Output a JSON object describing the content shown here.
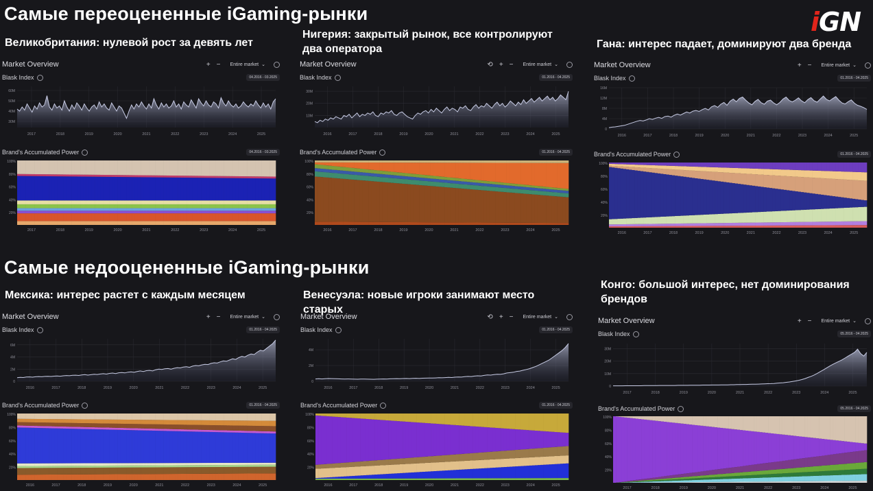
{
  "heading_overrated": "Самые переоцененные iGaming-рынки",
  "heading_underrated": "Самые недооцененные iGaming-рынки",
  "logo": {
    "prefix": "i",
    "main": "GN"
  },
  "ui": {
    "market_overview": "Market Overview",
    "blask_index": "Blask Index",
    "brands_power": "Brand's Accumulated Power",
    "entire_market": "Entire market",
    "zoom_in": "+",
    "zoom_out": "−",
    "chevron": "⌄"
  },
  "colors": {
    "area_top": "#b7bcd6",
    "area_bottom": "#2a2d42",
    "grid": "#2c2c33"
  },
  "chart_data": [
    {
      "id": "uk",
      "caption": "Великобритания: нулевой рост за девять лет",
      "date_range": "04.2016 - 03.2025",
      "reset_icon": false,
      "blask_index": {
        "type": "area",
        "x_ticks": [
          "2017",
          "2018",
          "2019",
          "2020",
          "2021",
          "2022",
          "2023",
          "2024",
          "2025"
        ],
        "y_ticks": [
          "30M",
          "40M",
          "50M",
          "60M"
        ],
        "ylim": [
          24,
          64
        ],
        "values": [
          42,
          40,
          44,
          41,
          47,
          43,
          39,
          45,
          42,
          48,
          44,
          46,
          55,
          44,
          41,
          47,
          43,
          45,
          41,
          50,
          44,
          40,
          46,
          42,
          48,
          45,
          41,
          47,
          43,
          40,
          44,
          46,
          42,
          49,
          44,
          47,
          43,
          41,
          48,
          44,
          40,
          45,
          43,
          38,
          33,
          40,
          46,
          42,
          47,
          44,
          49,
          45,
          42,
          47,
          43,
          52,
          46,
          42,
          48,
          44,
          47,
          43,
          45,
          50,
          44,
          47,
          42,
          49,
          46,
          44,
          51,
          47,
          43,
          52,
          48,
          45,
          50,
          46,
          44,
          49,
          47,
          43,
          53,
          48,
          45,
          50,
          46,
          44,
          47,
          43,
          45,
          49,
          46,
          44,
          47,
          45,
          50,
          46,
          43,
          48,
          44,
          47,
          42,
          49,
          52
        ]
      },
      "brand_power": {
        "type": "area",
        "x_ticks": [
          "2017",
          "2018",
          "2019",
          "2020",
          "2021",
          "2022",
          "2023",
          "2024",
          "2025"
        ],
        "y_ticks": [
          "20%",
          "40%",
          "60%",
          "80%",
          "100%"
        ],
        "stack_colors": [
          "#e6a86b",
          "#d8552b",
          "#8a4fd1",
          "#6aa3e0",
          "#8bc34a",
          "#e7dfa4",
          "#1b22b4",
          "#c23b6b",
          "#d4c3b0"
        ],
        "segments": [
          [
            6,
            6
          ],
          [
            12,
            12
          ],
          [
            4,
            4
          ],
          [
            4,
            4
          ],
          [
            6,
            6
          ],
          [
            6,
            6
          ],
          [
            38,
            34
          ],
          [
            3,
            3
          ],
          [
            21,
            25
          ]
        ]
      }
    },
    {
      "id": "nigeria",
      "caption": "Нигерия: закрытый рынок, все контролируют два оператора",
      "date_range": "01.2016 - 04.2025",
      "reset_icon": true,
      "blask_index": {
        "type": "area",
        "x_ticks": [
          "2016",
          "2017",
          "2018",
          "2019",
          "2020",
          "2021",
          "2022",
          "2023",
          "2024",
          "2025"
        ],
        "y_ticks": [
          "10M",
          "20M",
          "30M"
        ],
        "ylim": [
          0,
          34
        ],
        "values": [
          5,
          4,
          6,
          5,
          7,
          6,
          8,
          7,
          9,
          8,
          7,
          10,
          9,
          11,
          8,
          10,
          12,
          9,
          11,
          10,
          12,
          11,
          13,
          10,
          9,
          12,
          11,
          13,
          12,
          14,
          11,
          10,
          12,
          13,
          11,
          9,
          8,
          7,
          10,
          12,
          11,
          13,
          14,
          12,
          15,
          13,
          16,
          14,
          12,
          15,
          17,
          14,
          16,
          15,
          13,
          17,
          16,
          18,
          15,
          14,
          17,
          19,
          16,
          18,
          17,
          20,
          18,
          16,
          19,
          21,
          18,
          20,
          17,
          19,
          22,
          20,
          18,
          21,
          19,
          23,
          20,
          22,
          24,
          21,
          23,
          25,
          22,
          24,
          26,
          23,
          25,
          22,
          24,
          27,
          25,
          23,
          30
        ]
      },
      "brand_power": {
        "type": "area",
        "x_ticks": [
          "2016",
          "2017",
          "2018",
          "2019",
          "2020",
          "2021",
          "2022",
          "2023",
          "2024",
          "2025"
        ],
        "y_ticks": [
          "20%",
          "40%",
          "60%",
          "80%",
          "100%"
        ],
        "stack_colors": [
          "#b04a1c",
          "#8b4a1f",
          "#3e8c6e",
          "#3a5aa8",
          "#7e9e3a",
          "#e26a2c",
          "#c9b27a"
        ],
        "segments": [
          [
            5,
            3
          ],
          [
            70,
            40
          ],
          [
            8,
            6
          ],
          [
            5,
            4
          ],
          [
            6,
            3
          ],
          [
            3,
            40
          ],
          [
            3,
            4
          ]
        ]
      }
    },
    {
      "id": "ghana",
      "caption": "Гана: интерес падает, доминируют два бренда",
      "date_range": "01.2016 - 04.2025",
      "reset_icon": false,
      "blask_index": {
        "type": "area",
        "x_ticks": [
          "2016",
          "2017",
          "2018",
          "2019",
          "2020",
          "2021",
          "2022",
          "2023",
          "2024",
          "2025"
        ],
        "y_ticks": [
          "0",
          "4M",
          "8M",
          "12M",
          "16M"
        ],
        "ylim": [
          0,
          16
        ],
        "values": [
          0.5,
          0.7,
          0.8,
          1,
          1.2,
          1.4,
          1.8,
          2.2,
          2.6,
          3,
          3.3,
          3.1,
          3.5,
          4,
          3.7,
          4.2,
          4.5,
          4.1,
          4.8,
          5,
          4.6,
          5.3,
          5.8,
          5.4,
          6,
          6.6,
          6.2,
          6.9,
          7.2,
          6.8,
          7.5,
          8,
          7.4,
          8.6,
          9.1,
          8.4,
          9.6,
          10.3,
          9.2,
          10.8,
          11.6,
          10.6,
          11.9,
          12.4,
          11.2,
          10.1,
          9.4,
          10.7,
          11.5,
          10.2,
          9.6,
          10.8,
          11.2,
          10.1,
          9.4,
          10.3,
          11.6,
          12.4,
          11.1,
          10.5,
          11.2,
          12.1,
          10.9,
          10.2,
          11.4,
          12.2,
          11,
          10.4,
          11.6,
          12.8,
          11.5,
          10.9,
          11.8,
          12.6,
          11.2,
          10.1,
          9.7,
          10.6,
          11.3,
          10,
          9.2,
          8.8,
          8.3,
          7.6
        ]
      },
      "brand_power": {
        "type": "area",
        "x_ticks": [
          "2016",
          "2017",
          "2018",
          "2019",
          "2020",
          "2021",
          "2022",
          "2023",
          "2024",
          "2025"
        ],
        "y_ticks": [
          "20%",
          "40%",
          "60%",
          "80%",
          "100%"
        ],
        "stack_colors": [
          "#d85a5a",
          "#b27fe0",
          "#cfe0b0",
          "#2a2f8f",
          "#d6a07a",
          "#f2c98a",
          "#6d3dbf"
        ],
        "segments": [
          [
            2,
            4
          ],
          [
            3,
            6
          ],
          [
            8,
            22
          ],
          [
            80,
            10
          ],
          [
            2,
            30
          ],
          [
            3,
            13
          ],
          [
            2,
            15
          ]
        ]
      }
    },
    {
      "id": "mexico",
      "caption": "Мексика: интерес растет с каждым месяцем",
      "date_range": "01.2016 - 04.2025",
      "reset_icon": false,
      "blask_index": {
        "type": "area",
        "x_ticks": [
          "2016",
          "2017",
          "2018",
          "2019",
          "2020",
          "2021",
          "2022",
          "2023",
          "2024",
          "2025"
        ],
        "y_ticks": [
          "0",
          "2M",
          "4M",
          "6M"
        ],
        "ylim": [
          0,
          7
        ],
        "values": [
          0.6,
          0.65,
          0.62,
          0.7,
          0.72,
          0.68,
          0.75,
          0.78,
          0.74,
          0.8,
          0.82,
          0.79,
          0.85,
          0.88,
          0.84,
          0.9,
          0.95,
          0.92,
          0.98,
          1,
          0.96,
          1.05,
          1.1,
          1.02,
          1.08,
          1.15,
          1.12,
          1.2,
          1.25,
          1.18,
          1.3,
          1.35,
          1.28,
          1.4,
          1.45,
          1.38,
          1.5,
          1.55,
          1.48,
          1.6,
          1.7,
          1.62,
          1.75,
          1.8,
          1.7,
          1.9,
          2,
          1.95,
          2.05,
          2.1,
          2,
          2.15,
          2.25,
          2.2,
          2.35,
          2.4,
          2.3,
          2.5,
          2.6,
          2.55,
          2.7,
          2.8,
          2.75,
          2.95,
          3.05,
          3,
          3.2,
          3.35,
          3.3,
          3.5,
          3.7,
          3.6,
          3.9,
          4.1,
          4,
          4.3,
          4.5,
          4.4,
          4.8,
          5.1,
          5,
          5.4,
          5.8,
          6.2,
          6.8
        ]
      },
      "brand_power": {
        "type": "area",
        "x_ticks": [
          "2016",
          "2017",
          "2018",
          "2019",
          "2020",
          "2021",
          "2022",
          "2023",
          "2024",
          "2025"
        ],
        "y_ticks": [
          "20%",
          "40%",
          "60%",
          "80%",
          "100%"
        ],
        "stack_colors": [
          "#d0652d",
          "#8a5a2a",
          "#a8d48a",
          "#e6e6c8",
          "#2e3bd8",
          "#c65ad1",
          "#8a4f2a",
          "#d48a3a",
          "#dcc6a8"
        ],
        "segments": [
          [
            8,
            10
          ],
          [
            10,
            10
          ],
          [
            3,
            3
          ],
          [
            4,
            3
          ],
          [
            54,
            44
          ],
          [
            3,
            3
          ],
          [
            5,
            8
          ],
          [
            5,
            8
          ],
          [
            8,
            11
          ]
        ]
      }
    },
    {
      "id": "venezuela",
      "caption": "Венесуэла: новые игроки занимают место старых",
      "date_range": "01.2016 - 04.2025",
      "reset_icon": true,
      "blask_index": {
        "type": "area",
        "x_ticks": [
          "2016",
          "2017",
          "2018",
          "2019",
          "2020",
          "2021",
          "2022",
          "2023",
          "2024",
          "2025"
        ],
        "y_ticks": [
          "0",
          "2M",
          "4M"
        ],
        "ylim": [
          0,
          5.4
        ],
        "values": [
          0.3,
          0.32,
          0.3,
          0.33,
          0.35,
          0.34,
          0.32,
          0.31,
          0.3,
          0.29,
          0.3,
          0.28,
          0.27,
          0.26,
          0.28,
          0.29,
          0.27,
          0.26,
          0.25,
          0.27,
          0.28,
          0.3,
          0.29,
          0.31,
          0.32,
          0.34,
          0.33,
          0.35,
          0.36,
          0.34,
          0.37,
          0.38,
          0.36,
          0.39,
          0.4,
          0.42,
          0.41,
          0.43,
          0.45,
          0.44,
          0.47,
          0.5,
          0.48,
          0.52,
          0.55,
          0.53,
          0.58,
          0.62,
          0.6,
          0.66,
          0.7,
          0.68,
          0.75,
          0.8,
          0.78,
          0.85,
          0.9,
          0.88,
          0.95,
          1.05,
          1.1,
          1.15,
          1.25,
          1.3,
          1.4,
          1.5,
          1.6,
          1.75,
          1.9,
          2.1,
          2.3,
          2.5,
          2.7,
          3,
          3.3,
          3.6,
          3.9,
          4.3,
          4.8
        ]
      },
      "brand_power": {
        "type": "area",
        "x_ticks": [
          "2016",
          "2017",
          "2018",
          "2019",
          "2020",
          "2021",
          "2022",
          "2023",
          "2024",
          "2025"
        ],
        "y_ticks": [
          "20%",
          "40%",
          "60%",
          "80%",
          "100%"
        ],
        "stack_colors": [
          "#7ab84a",
          "#2230d8",
          "#e2c08a",
          "#9a7a4a",
          "#7a2fd0",
          "#c7a93a"
        ],
        "segments": [
          [
            2,
            3
          ],
          [
            1,
            22
          ],
          [
            14,
            12
          ],
          [
            6,
            14
          ],
          [
            74,
            20
          ],
          [
            3,
            29
          ]
        ]
      }
    },
    {
      "id": "congo",
      "caption": "Конго: большой интерес, нет доминирования брендов",
      "date_range": "05.2016 - 04.2025",
      "reset_icon": false,
      "blask_index": {
        "type": "area",
        "x_ticks": [
          "2017",
          "2018",
          "2019",
          "2020",
          "2021",
          "2022",
          "2023",
          "2024",
          "2025"
        ],
        "y_ticks": [
          "0",
          "10M",
          "20M",
          "30M"
        ],
        "ylim": [
          0,
          34
        ],
        "values": [
          0.2,
          0.2,
          0.2,
          0.2,
          0.3,
          0.3,
          0.3,
          0.3,
          0.3,
          0.3,
          0.4,
          0.4,
          0.4,
          0.4,
          0.4,
          0.5,
          0.5,
          0.5,
          0.5,
          0.5,
          0.5,
          0.6,
          0.6,
          0.6,
          0.6,
          0.7,
          0.7,
          0.7,
          0.7,
          0.8,
          0.8,
          0.8,
          0.9,
          0.9,
          0.9,
          1,
          1,
          1,
          1.1,
          1.1,
          1.2,
          1.2,
          1.3,
          1.3,
          1.4,
          1.5,
          1.5,
          1.6,
          1.7,
          1.8,
          1.9,
          2,
          2.1,
          2.3,
          2.5,
          2.7,
          3,
          3.3,
          3.7,
          4.1,
          4.6,
          5.2,
          6,
          6.9,
          7.8,
          8.9,
          10.2,
          11.6,
          13,
          14.5,
          16,
          17.4,
          18.6,
          19.8,
          21,
          22.5,
          24,
          25.5,
          27,
          29.5,
          26,
          24,
          27
        ]
      },
      "brand_power": {
        "type": "area",
        "x_ticks": [
          "2017",
          "2018",
          "2019",
          "2020",
          "2021",
          "2022",
          "2023",
          "2024",
          "2025"
        ],
        "y_ticks": [
          "20%",
          "40%",
          "60%",
          "80%",
          "100%"
        ],
        "stack_colors": [
          "#d6d6d6",
          "#7fd0e0",
          "#2e7a3a",
          "#6aa83a",
          "#7a3a8a",
          "#8b3fd6",
          "#d6c3b0"
        ],
        "segments": [
          [
            0,
            3
          ],
          [
            0,
            10
          ],
          [
            0,
            8
          ],
          [
            0,
            10
          ],
          [
            0,
            18
          ],
          [
            100,
            10
          ],
          [
            0,
            41
          ]
        ]
      }
    }
  ]
}
